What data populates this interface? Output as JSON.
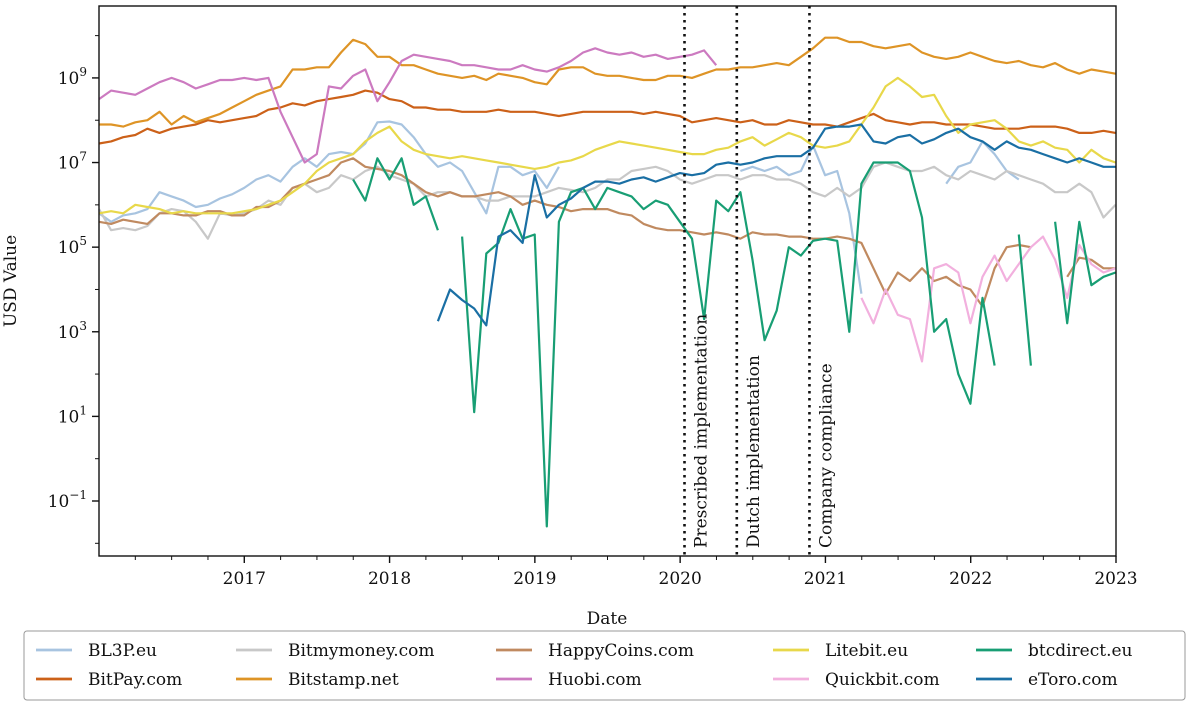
{
  "chart_data": {
    "type": "line",
    "title": "",
    "xlabel": "Date",
    "ylabel": "USD Value",
    "yscale": "log",
    "xlim": [
      2016.0,
      2023.0
    ],
    "ylim_log10": [
      -2.3,
      10.7
    ],
    "x_ticks": [
      {
        "value": 2017,
        "label": "2017"
      },
      {
        "value": 2018,
        "label": "2018"
      },
      {
        "value": 2019,
        "label": "2019"
      },
      {
        "value": 2020,
        "label": "2020"
      },
      {
        "value": 2021,
        "label": "2021"
      },
      {
        "value": 2022,
        "label": "2022"
      },
      {
        "value": 2023,
        "label": "2023"
      }
    ],
    "y_ticks": [
      {
        "exp": -1,
        "base": "10",
        "power": "−1"
      },
      {
        "exp": 1,
        "base": "10",
        "power": "1"
      },
      {
        "exp": 3,
        "base": "10",
        "power": "3"
      },
      {
        "exp": 5,
        "base": "10",
        "power": "5"
      },
      {
        "exp": 7,
        "base": "10",
        "power": "7"
      },
      {
        "exp": 9,
        "base": "10",
        "power": "9"
      }
    ],
    "annotations": [
      {
        "x": 2020.03,
        "text": "Prescribed implementation"
      },
      {
        "x": 2020.39,
        "text": "Dutch implementation"
      },
      {
        "x": 2020.89,
        "text": "Company compliance"
      }
    ],
    "series": [
      {
        "name": "BL3P.eu",
        "color": "#a8c4e0",
        "x0": 2016.0,
        "step": 0.0833,
        "log10": [
          5.8,
          5.6,
          5.75,
          5.8,
          5.9,
          6.3,
          6.2,
          6.1,
          5.95,
          6.0,
          6.15,
          6.25,
          6.4,
          6.6,
          6.7,
          6.55,
          6.9,
          7.1,
          6.9,
          7.2,
          7.25,
          7.2,
          7.45,
          7.95,
          7.97,
          7.9,
          7.6,
          7.2,
          6.9,
          7.0,
          6.8,
          6.3,
          5.8,
          6.9,
          6.9,
          6.7,
          6.8,
          6.4,
          6.9,
          null,
          null,
          null,
          null,
          null,
          null,
          null,
          null,
          null,
          null,
          null,
          null,
          null,
          null,
          6.8,
          6.9,
          6.8,
          6.9,
          6.7,
          6.8,
          7.4,
          6.7,
          6.8,
          5.8,
          3.9,
          null,
          null,
          null,
          null,
          null,
          null,
          6.5,
          6.9,
          7.0,
          7.5,
          7.2,
          6.8,
          6.6,
          null,
          null,
          null,
          null,
          null,
          null,
          null,
          null,
          5.6,
          6.5,
          6.55,
          6.6
        ]
      },
      {
        "name": "BitPay.com",
        "color": "#cc6119",
        "x0": 2016.0,
        "step": 0.0833,
        "log10": [
          7.45,
          7.5,
          7.6,
          7.65,
          7.8,
          7.7,
          7.8,
          7.85,
          7.9,
          8.0,
          7.95,
          8.0,
          8.05,
          8.1,
          8.25,
          8.3,
          8.4,
          8.35,
          8.45,
          8.5,
          8.55,
          8.6,
          8.7,
          8.65,
          8.5,
          8.45,
          8.3,
          8.3,
          8.25,
          8.25,
          8.2,
          8.2,
          8.2,
          8.25,
          8.2,
          8.2,
          8.2,
          8.15,
          8.1,
          8.15,
          8.2,
          8.2,
          8.2,
          8.2,
          8.2,
          8.15,
          8.2,
          8.15,
          8.1,
          7.95,
          8.0,
          8.05,
          8.0,
          7.95,
          8.0,
          7.9,
          7.9,
          8.0,
          7.95,
          7.9,
          7.9,
          7.85,
          7.95,
          8.05,
          8.15,
          8.0,
          7.95,
          7.9,
          7.95,
          7.95,
          7.9,
          7.9,
          7.9,
          7.85,
          7.8,
          7.8,
          7.8,
          7.85,
          7.85,
          7.85,
          7.8,
          7.7,
          7.7,
          7.75,
          7.7,
          7.65
        ]
      },
      {
        "name": "Bitmymoney.com",
        "color": "#c8c8c8",
        "x0": 2016.0,
        "step": 0.0833,
        "log10": [
          5.9,
          5.4,
          5.45,
          5.4,
          5.5,
          5.8,
          5.9,
          5.85,
          5.6,
          5.2,
          5.8,
          5.75,
          5.8,
          5.9,
          6.1,
          6.0,
          6.4,
          6.5,
          6.3,
          6.4,
          6.7,
          6.6,
          6.8,
          6.9,
          6.7,
          6.6,
          6.5,
          6.2,
          6.3,
          6.3,
          6.2,
          6.2,
          6.1,
          6.1,
          6.2,
          6.2,
          6.2,
          6.3,
          6.4,
          6.35,
          6.3,
          6.4,
          6.6,
          6.6,
          6.8,
          6.85,
          6.9,
          6.8,
          6.6,
          6.5,
          6.6,
          6.7,
          6.7,
          6.6,
          6.7,
          6.7,
          6.6,
          6.6,
          6.5,
          6.3,
          6.2,
          6.4,
          6.2,
          6.4,
          6.9,
          7.0,
          6.9,
          6.8,
          6.8,
          6.9,
          6.7,
          6.6,
          6.8,
          6.7,
          6.6,
          6.8,
          6.7,
          6.6,
          6.5,
          6.3,
          6.3,
          6.5,
          6.3,
          5.7,
          6.0,
          5.9,
          5.6
        ]
      },
      {
        "name": "Bitstamp.net",
        "color": "#de9426",
        "x0": 2016.0,
        "step": 0.0833,
        "log10": [
          7.9,
          7.9,
          7.85,
          7.95,
          8.0,
          8.2,
          7.9,
          8.1,
          7.95,
          8.05,
          8.15,
          8.3,
          8.45,
          8.6,
          8.7,
          8.8,
          9.2,
          9.2,
          9.25,
          9.25,
          9.6,
          9.9,
          9.8,
          9.5,
          9.5,
          9.3,
          9.3,
          9.2,
          9.1,
          9.05,
          9.0,
          9.05,
          8.95,
          9.1,
          9.05,
          9.0,
          8.9,
          8.85,
          9.2,
          9.25,
          9.25,
          9.1,
          9.05,
          9.05,
          9.0,
          8.95,
          8.95,
          9.05,
          9.05,
          9.0,
          9.1,
          9.2,
          9.2,
          9.25,
          9.25,
          9.3,
          9.35,
          9.3,
          9.5,
          9.7,
          9.95,
          9.95,
          9.85,
          9.85,
          9.75,
          9.7,
          9.75,
          9.8,
          9.6,
          9.5,
          9.45,
          9.5,
          9.6,
          9.5,
          9.4,
          9.35,
          9.4,
          9.3,
          9.25,
          9.35,
          9.2,
          9.1,
          9.2,
          9.15,
          9.1,
          9.15,
          9.05
        ]
      },
      {
        "name": "HappyCoins.com",
        "color": "#c08a60",
        "x0": 2016.0,
        "step": 0.0833,
        "log10": [
          5.6,
          5.55,
          5.65,
          5.6,
          5.55,
          5.8,
          5.8,
          5.75,
          5.75,
          5.85,
          5.85,
          5.75,
          5.75,
          5.95,
          5.95,
          6.1,
          6.4,
          6.5,
          6.6,
          6.7,
          7.0,
          7.1,
          6.9,
          6.85,
          6.8,
          6.7,
          6.5,
          6.3,
          6.2,
          6.3,
          6.2,
          6.2,
          6.25,
          6.3,
          6.2,
          6.0,
          6.1,
          6.0,
          5.95,
          5.85,
          5.9,
          5.9,
          5.9,
          5.8,
          5.75,
          5.55,
          5.45,
          5.4,
          5.4,
          5.35,
          5.3,
          5.35,
          5.3,
          5.2,
          5.35,
          5.3,
          5.3,
          5.25,
          5.25,
          5.2,
          5.2,
          5.25,
          5.2,
          5.1,
          4.5,
          3.9,
          4.4,
          4.2,
          4.5,
          4.2,
          4.3,
          4.1,
          4.0,
          3.6,
          4.5,
          5.0,
          5.05,
          5.0,
          null,
          null,
          4.3,
          4.75,
          4.7,
          4.5,
          4.5,
          4.55,
          4.65
        ]
      },
      {
        "name": "Huobi.com",
        "color": "#cc7ac0",
        "x0": 2016.0,
        "step": 0.0833,
        "log10": [
          8.5,
          8.7,
          8.65,
          8.6,
          8.75,
          8.9,
          9.0,
          8.9,
          8.75,
          8.85,
          8.95,
          8.95,
          9.0,
          8.95,
          9.0,
          8.2,
          7.6,
          7.0,
          7.2,
          8.8,
          8.75,
          9.05,
          9.2,
          8.45,
          8.9,
          9.4,
          9.55,
          9.5,
          9.45,
          9.4,
          9.3,
          9.3,
          9.25,
          9.2,
          9.2,
          9.3,
          9.2,
          9.15,
          9.25,
          9.4,
          9.6,
          9.7,
          9.6,
          9.55,
          9.6,
          9.5,
          9.55,
          9.45,
          9.5,
          9.55,
          9.65,
          9.3,
          null,
          null,
          null,
          null,
          null,
          null,
          null,
          null,
          null,
          null,
          null,
          null,
          null,
          null,
          null,
          null,
          null,
          null,
          null,
          null,
          null,
          null,
          null,
          null,
          null,
          null,
          null,
          null,
          null,
          null,
          null,
          null,
          null,
          null,
          null
        ]
      },
      {
        "name": "Litebit.eu",
        "color": "#e8d84a",
        "x0": 2016.0,
        "step": 0.0833,
        "log10": [
          5.8,
          5.85,
          5.8,
          6.0,
          5.95,
          5.9,
          5.8,
          5.85,
          5.8,
          5.8,
          5.8,
          5.8,
          5.85,
          5.9,
          6.0,
          6.1,
          6.3,
          6.5,
          6.8,
          7.0,
          7.1,
          7.2,
          7.5,
          7.7,
          7.85,
          7.5,
          7.3,
          7.2,
          7.15,
          7.1,
          7.15,
          7.1,
          7.05,
          7.0,
          6.95,
          6.9,
          6.85,
          6.9,
          7.0,
          7.05,
          7.15,
          7.3,
          7.4,
          7.5,
          7.45,
          7.4,
          7.35,
          7.3,
          7.25,
          7.2,
          7.2,
          7.3,
          7.35,
          7.5,
          7.6,
          7.4,
          7.55,
          7.7,
          7.6,
          7.4,
          7.35,
          7.4,
          7.5,
          7.9,
          8.3,
          8.8,
          9.0,
          8.8,
          8.55,
          8.6,
          8.1,
          7.7,
          7.9,
          7.95,
          8.0,
          7.8,
          7.5,
          7.4,
          7.5,
          7.35,
          7.3,
          7.0,
          7.3,
          7.1,
          7.0,
          7.1,
          7.2,
          7.8,
          6.8
        ]
      },
      {
        "name": "Quickbit.com",
        "color": "#f2b0de",
        "x0": 2016.0,
        "step": 0.0833,
        "log10": [
          null,
          null,
          null,
          null,
          null,
          null,
          null,
          null,
          null,
          null,
          null,
          null,
          null,
          null,
          null,
          null,
          null,
          null,
          null,
          null,
          null,
          null,
          null,
          null,
          null,
          null,
          null,
          null,
          null,
          null,
          null,
          null,
          null,
          null,
          null,
          null,
          null,
          null,
          null,
          null,
          null,
          null,
          null,
          null,
          null,
          null,
          null,
          null,
          null,
          null,
          null,
          null,
          null,
          null,
          null,
          null,
          null,
          null,
          null,
          null,
          null,
          null,
          null,
          3.8,
          3.2,
          4.0,
          3.4,
          3.3,
          2.3,
          4.5,
          4.6,
          4.4,
          3.2,
          4.3,
          4.8,
          4.2,
          4.6,
          5.0,
          5.25,
          4.7,
          3.8,
          5.05,
          4.6,
          4.4,
          4.5,
          3.0,
          2.8,
          3.3,
          4.7
        ]
      },
      {
        "name": "btcdirect.eu",
        "color": "#189e74",
        "x0": 2016.0,
        "step": 0.0833,
        "log10": [
          null,
          null,
          null,
          null,
          null,
          null,
          null,
          null,
          null,
          null,
          null,
          null,
          null,
          null,
          null,
          null,
          null,
          null,
          null,
          null,
          null,
          6.6,
          6.1,
          7.1,
          6.6,
          7.1,
          6.0,
          6.2,
          5.4,
          null,
          5.25,
          1.1,
          4.85,
          5.1,
          5.9,
          5.2,
          5.3,
          -1.6,
          5.6,
          6.3,
          6.4,
          5.9,
          6.4,
          6.3,
          6.2,
          5.9,
          6.1,
          6.0,
          5.6,
          5.2,
          3.3,
          6.1,
          5.85,
          6.3,
          4.7,
          2.8,
          3.5,
          5.0,
          4.8,
          5.15,
          5.2,
          5.15,
          3.0,
          6.5,
          7.0,
          7.0,
          7.0,
          6.8,
          5.7,
          3.0,
          3.3,
          2.0,
          1.3,
          3.8,
          2.2,
          null,
          5.3,
          2.2,
          null,
          5.6,
          3.2,
          5.6,
          4.1,
          4.3,
          4.4,
          2.5,
          null,
          2.4,
          4.0
        ]
      },
      {
        "name": "eToro.com",
        "color": "#1a6fa4",
        "x0": 2016.0,
        "step": 0.0833,
        "log10": [
          null,
          null,
          null,
          null,
          null,
          null,
          null,
          null,
          null,
          null,
          null,
          null,
          null,
          null,
          null,
          null,
          null,
          null,
          null,
          null,
          null,
          null,
          null,
          null,
          null,
          null,
          null,
          null,
          3.25,
          4.0,
          3.75,
          3.55,
          3.15,
          5.25,
          5.4,
          5.1,
          6.7,
          5.7,
          6.0,
          6.15,
          6.4,
          6.55,
          6.55,
          6.5,
          6.6,
          6.65,
          6.55,
          6.65,
          6.75,
          6.7,
          6.75,
          6.95,
          7.0,
          6.95,
          7.0,
          7.1,
          7.15,
          7.15,
          7.15,
          7.35,
          7.8,
          7.85,
          7.85,
          7.9,
          7.5,
          7.45,
          7.6,
          7.65,
          7.45,
          7.55,
          7.7,
          7.8,
          7.6,
          7.5,
          7.3,
          7.5,
          7.35,
          7.3,
          7.2,
          7.1,
          7.0,
          7.1,
          7.0,
          6.9,
          6.9,
          7.4,
          7.1
        ]
      }
    ]
  }
}
